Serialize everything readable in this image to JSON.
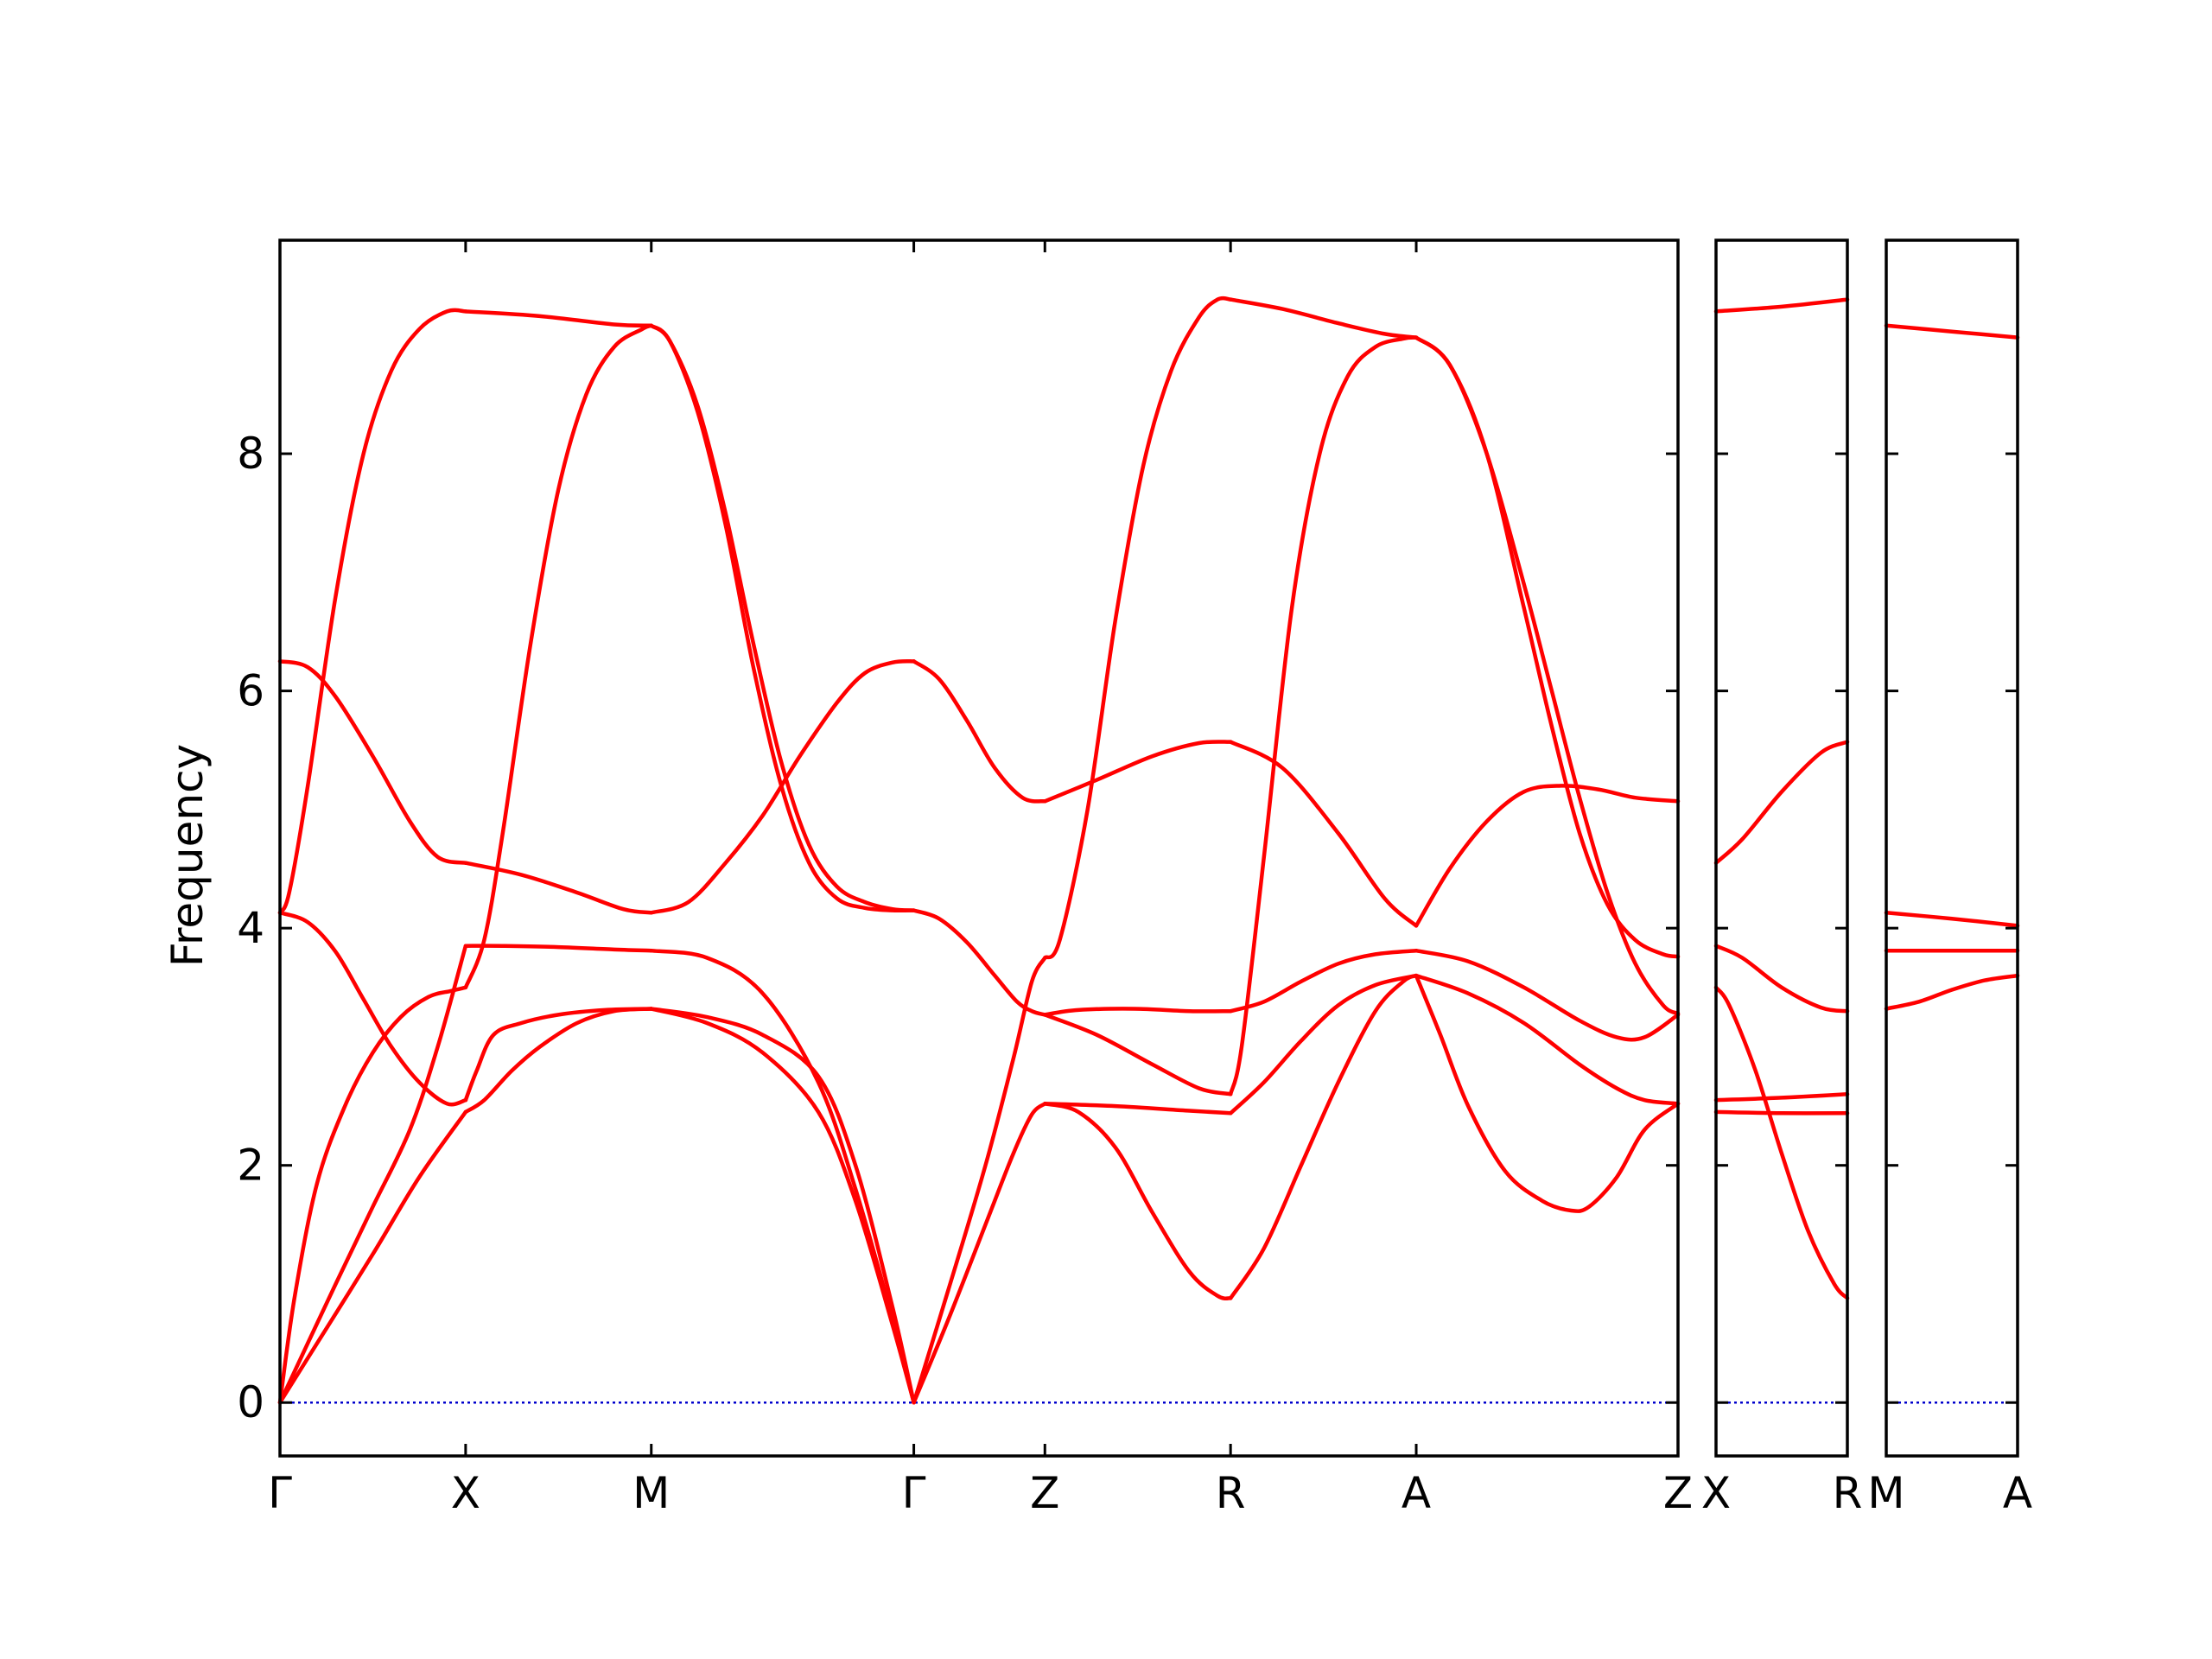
{
  "chart_data": {
    "type": "line",
    "title": "",
    "xlabel": "",
    "ylabel": "Frequency",
    "ylim": [
      -0.45,
      9.8
    ],
    "yticks": [
      0,
      2,
      4,
      6,
      8
    ],
    "grid": false,
    "legend": "none",
    "colors": {
      "bands": "#ff0000",
      "zero_line": "#0000cc",
      "axes": "#000000"
    },
    "panels": [
      {
        "path": "Γ-X-M-Γ-Z-R-A-Z",
        "labels": [
          {
            "text": "Γ",
            "x": 0
          },
          {
            "text": "X",
            "x": 1
          },
          {
            "text": "M",
            "x": 2
          },
          {
            "text": "Γ",
            "x": 3.414
          },
          {
            "text": "Z",
            "x": 4.12
          },
          {
            "text": "R",
            "x": 5.12
          },
          {
            "text": "A",
            "x": 6.12
          },
          {
            "text": "Z",
            "x": 7.53
          }
        ],
        "xlim": [
          0,
          7.53
        ],
        "bands": [
          {
            "x": [
              0,
              0.08,
              0.2,
              0.35,
              0.5,
              0.65,
              0.8,
              0.92,
              1
            ],
            "y": [
              0,
              0.9,
              1.85,
              2.5,
              2.95,
              3.25,
              3.42,
              3.47,
              3.5
            ]
          },
          {
            "x": [
              1,
              1.1,
              1.2,
              1.35,
              1.5,
              1.65,
              1.8,
              1.95,
              2
            ],
            "y": [
              3.5,
              3.9,
              4.8,
              6.4,
              7.7,
              8.5,
              8.9,
              9.05,
              9.08
            ]
          },
          {
            "x": [
              0,
              0.15,
              0.3,
              0.5,
              0.7,
              0.85,
              1
            ],
            "y": [
              0,
              0.5,
              1.0,
              1.65,
              2.3,
              3.0,
              3.85
            ]
          },
          {
            "x": [
              1,
              1.2,
              1.5,
              1.8,
              2
            ],
            "y": [
              3.85,
              3.85,
              3.84,
              3.82,
              3.81
            ]
          },
          {
            "x": [
              0,
              0.2,
              0.5,
              0.75,
              1
            ],
            "y": [
              0,
              0.5,
              1.25,
              1.9,
              2.45
            ]
          },
          {
            "x": [
              1,
              1.1,
              1.25,
              1.4,
              1.6,
              1.8,
              2
            ],
            "y": [
              2.45,
              2.55,
              2.8,
              3.0,
              3.2,
              3.3,
              3.32
            ]
          },
          {
            "x": [
              0,
              0.15,
              0.3,
              0.45,
              0.6,
              0.75,
              0.9,
              1
            ],
            "y": [
              4.13,
              4.05,
              3.8,
              3.4,
              3.0,
              2.7,
              2.52,
              2.55
            ]
          },
          {
            "x": [
              1,
              1.06,
              1.15,
              1.3,
              1.5,
              1.75,
              2
            ],
            "y": [
              2.55,
              2.8,
              3.1,
              3.2,
              3.27,
              3.31,
              3.32
            ]
          },
          {
            "x": [
              0,
              0.05,
              0.15,
              0.3,
              0.45,
              0.6,
              0.75,
              0.9,
              1
            ],
            "y": [
              4.13,
              4.3,
              5.2,
              6.8,
              8.0,
              8.7,
              9.05,
              9.2,
              9.2
            ]
          },
          {
            "x": [
              1,
              1.4,
              1.8,
              2
            ],
            "y": [
              9.2,
              9.16,
              9.09,
              9.08
            ]
          },
          {
            "x": [
              0,
              0.15,
              0.3,
              0.5,
              0.7,
              0.85,
              1
            ],
            "y": [
              6.25,
              6.2,
              5.95,
              5.45,
              4.9,
              4.6,
              4.55
            ]
          },
          {
            "x": [
              1,
              1.3,
              1.6,
              1.85,
              2
            ],
            "y": [
              4.55,
              4.45,
              4.3,
              4.16,
              4.13
            ]
          },
          {
            "x": [
              2,
              2.1,
              2.25,
              2.4,
              2.55,
              2.7,
              2.85,
              3.0,
              3.15,
              3.3,
              3.414
            ],
            "y": [
              9.08,
              8.95,
              8.4,
              7.5,
              6.4,
              5.4,
              4.7,
              4.35,
              4.22,
              4.16,
              4.15
            ]
          },
          {
            "x": [
              2,
              2.1,
              2.25,
              2.4,
              2.55,
              2.7,
              2.85,
              3.0,
              3.15,
              3.3,
              3.414
            ],
            "y": [
              9.08,
              8.95,
              8.35,
              7.4,
              6.2,
              5.2,
              4.55,
              4.25,
              4.17,
              4.15,
              4.15
            ]
          },
          {
            "x": [
              2,
              2.2,
              2.4,
              2.6,
              2.8,
              3.0,
              3.15,
              3.3,
              3.414
            ],
            "y": [
              4.13,
              4.22,
              4.55,
              4.95,
              5.45,
              5.9,
              6.15,
              6.24,
              6.25
            ]
          },
          {
            "x": [
              2,
              2.3,
              2.6,
              2.9,
              3.1,
              3.3,
              3.414
            ],
            "y": [
              3.81,
              3.75,
              3.45,
              2.7,
              1.8,
              0.7,
              0
            ]
          },
          {
            "x": [
              2,
              2.3,
              2.6,
              2.9,
              3.1,
              3.3,
              3.414
            ],
            "y": [
              3.32,
              3.25,
              3.1,
              2.75,
              2.0,
              0.8,
              0
            ]
          },
          {
            "x": [
              2,
              2.3,
              2.6,
              2.9,
              3.1,
              3.3,
              3.414
            ],
            "y": [
              3.32,
              3.2,
              2.95,
              2.45,
              1.7,
              0.65,
              0
            ]
          },
          {
            "x": [
              3.414,
              3.55,
              3.7,
              3.85,
              4.0,
              4.12
            ],
            "y": [
              6.25,
              6.1,
              5.75,
              5.35,
              5.1,
              5.07
            ]
          },
          {
            "x": [
              4.12,
              4.4,
              4.7,
              4.95,
              5.12
            ],
            "y": [
              5.07,
              5.25,
              5.45,
              5.56,
              5.57
            ]
          },
          {
            "x": [
              3.414,
              3.55,
              3.7,
              3.85,
              3.97,
              4.05,
              4.12
            ],
            "y": [
              4.15,
              4.08,
              3.88,
              3.6,
              3.38,
              3.3,
              3.27
            ]
          },
          {
            "x": [
              4.12,
              4.4,
              4.7,
              4.95,
              5.12
            ],
            "y": [
              3.27,
              3.1,
              2.85,
              2.65,
              2.6
            ]
          },
          {
            "x": [
              3.414,
              3.6,
              3.8,
              3.95,
              4.05,
              4.12
            ],
            "y": [
              0,
              0.95,
              2.0,
              2.9,
              3.55,
              3.75
            ]
          },
          {
            "x": [
              4.12,
              4.2,
              4.35,
              4.5,
              4.65,
              4.8,
              4.95,
              5.05,
              5.12
            ],
            "y": [
              3.75,
              3.9,
              5.0,
              6.6,
              7.9,
              8.7,
              9.15,
              9.3,
              9.3
            ]
          },
          {
            "x": [
              3.414,
              3.6,
              3.8,
              3.95,
              4.05,
              4.12
            ],
            "y": [
              0,
              0.7,
              1.5,
              2.1,
              2.43,
              2.52
            ]
          },
          {
            "x": [
              4.12,
              4.5,
              4.9,
              5.12
            ],
            "y": [
              2.52,
              2.5,
              2.46,
              2.44
            ]
          },
          {
            "x": [
              4.12,
              4.3,
              4.5,
              4.7,
              4.9,
              5.05,
              5.12
            ],
            "y": [
              2.52,
              2.45,
              2.15,
              1.6,
              1.1,
              0.9,
              0.88
            ]
          },
          {
            "x": [
              4.12,
              4.3,
              4.6,
              4.9,
              5.12
            ],
            "y": [
              3.27,
              3.31,
              3.32,
              3.3,
              3.3
            ]
          },
          {
            "x": [
              5.12,
              5.3,
              5.5,
              5.7,
              5.9,
              6.05,
              6.12
            ],
            "y": [
              0.88,
              1.3,
              2.0,
              2.7,
              3.3,
              3.55,
              3.6
            ]
          },
          {
            "x": [
              5.12,
              5.3,
              5.5,
              5.7,
              5.9,
              6.12
            ],
            "y": [
              2.44,
              2.7,
              3.05,
              3.35,
              3.52,
              3.6
            ]
          },
          {
            "x": [
              5.12,
              5.3,
              5.5,
              5.7,
              5.9,
              6.12
            ],
            "y": [
              3.3,
              3.38,
              3.55,
              3.7,
              3.78,
              3.81
            ]
          },
          {
            "x": [
              5.12,
              5.4,
              5.7,
              5.95,
              6.12
            ],
            "y": [
              5.57,
              5.35,
              4.8,
              4.25,
              4.02
            ]
          },
          {
            "x": [
              5.12,
              5.18,
              5.3,
              5.45,
              5.6,
              5.75,
              5.9,
              6.05,
              6.12
            ],
            "y": [
              2.6,
              3.0,
              4.6,
              6.7,
              8.0,
              8.65,
              8.9,
              8.97,
              8.98
            ]
          },
          {
            "x": [
              5.12,
              5.4,
              5.7,
              5.95,
              6.12
            ],
            "y": [
              9.3,
              9.22,
              9.1,
              9.01,
              8.98
            ]
          },
          {
            "x": [
              6.12,
              6.3,
              6.5,
              6.7,
              6.85,
              7.0,
              7.15,
              7.3,
              7.45,
              7.53
            ],
            "y": [
              8.98,
              8.75,
              8.0,
              6.9,
              6.0,
              5.1,
              4.3,
              3.7,
              3.35,
              3.28
            ]
          },
          {
            "x": [
              6.12,
              6.3,
              6.5,
              6.7,
              6.85,
              7.0,
              7.15,
              7.3,
              7.45,
              7.53
            ],
            "y": [
              8.98,
              8.75,
              8.0,
              6.7,
              5.7,
              4.8,
              4.2,
              3.9,
              3.78,
              3.76
            ]
          },
          {
            "x": [
              6.12,
              6.3,
              6.5,
              6.7,
              6.9,
              7.1,
              7.3,
              7.53
            ],
            "y": [
              4.02,
              4.5,
              4.9,
              5.15,
              5.2,
              5.17,
              5.1,
              5.07
            ]
          },
          {
            "x": [
              6.12,
              6.4,
              6.7,
              7.0,
              7.2,
              7.35,
              7.53
            ],
            "y": [
              3.81,
              3.72,
              3.5,
              3.22,
              3.08,
              3.08,
              3.27
            ]
          },
          {
            "x": [
              6.12,
              6.4,
              6.7,
              7.0,
              7.2,
              7.35,
              7.53
            ],
            "y": [
              3.6,
              3.45,
              3.2,
              2.85,
              2.65,
              2.55,
              2.52
            ]
          },
          {
            "x": [
              6.12,
              6.25,
              6.4,
              6.6,
              6.8,
              6.95,
              7.05,
              7.2,
              7.35,
              7.53
            ],
            "y": [
              3.6,
              3.1,
              2.5,
              1.95,
              1.7,
              1.62,
              1.65,
              1.9,
              2.3,
              2.52
            ]
          }
        ]
      },
      {
        "path": "X-R",
        "labels": [
          {
            "text": "X",
            "x": 0
          },
          {
            "text": "R",
            "x": 1
          }
        ],
        "xlim": [
          0,
          1
        ],
        "bands": [
          {
            "x": [
              0,
              0.5,
              1
            ],
            "y": [
              9.2,
              9.24,
              9.3
            ]
          },
          {
            "x": [
              0,
              0.2,
              0.5,
              0.8,
              1
            ],
            "y": [
              4.55,
              4.75,
              5.15,
              5.48,
              5.57
            ]
          },
          {
            "x": [
              0,
              0.2,
              0.5,
              0.8,
              1
            ],
            "y": [
              3.85,
              3.75,
              3.5,
              3.33,
              3.3
            ]
          },
          {
            "x": [
              0,
              0.1,
              0.3,
              0.5,
              0.7,
              0.9,
              1
            ],
            "y": [
              3.5,
              3.35,
              2.8,
              2.1,
              1.45,
              1.0,
              0.88
            ]
          },
          {
            "x": [
              0,
              0.5,
              1
            ],
            "y": [
              2.55,
              2.57,
              2.6
            ]
          },
          {
            "x": [
              0,
              0.5,
              1
            ],
            "y": [
              2.45,
              2.44,
              2.44
            ]
          }
        ]
      },
      {
        "path": "M-A",
        "labels": [
          {
            "text": "M",
            "x": 0
          },
          {
            "text": "A",
            "x": 1
          }
        ],
        "xlim": [
          0,
          1
        ],
        "bands": [
          {
            "x": [
              0,
              0.5,
              1
            ],
            "y": [
              9.08,
              9.03,
              8.98
            ]
          },
          {
            "x": [
              0,
              0.5,
              1
            ],
            "y": [
              4.13,
              4.08,
              4.02
            ]
          },
          {
            "x": [
              0,
              0.5,
              1
            ],
            "y": [
              3.81,
              3.81,
              3.81
            ]
          },
          {
            "x": [
              0,
              0.25,
              0.5,
              0.75,
              1
            ],
            "y": [
              3.32,
              3.38,
              3.48,
              3.56,
              3.6
            ]
          }
        ]
      }
    ]
  }
}
